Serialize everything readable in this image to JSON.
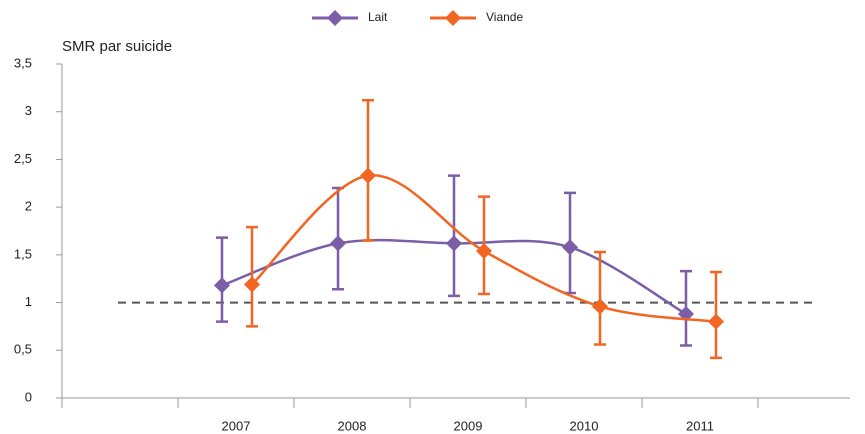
{
  "chart_data": {
    "type": "line",
    "y_label": "SMR par suicide",
    "categories": [
      "2007",
      "2008",
      "2009",
      "2010",
      "2011"
    ],
    "series": [
      {
        "name": "Lait",
        "color": "#7b5ea7",
        "values": [
          1.18,
          1.62,
          1.62,
          1.58,
          0.88
        ],
        "lower": [
          0.8,
          1.14,
          1.07,
          1.1,
          0.55
        ],
        "upper": [
          1.68,
          2.2,
          2.33,
          2.15,
          1.33
        ]
      },
      {
        "name": "Viande",
        "color": "#f26522",
        "values": [
          1.19,
          2.33,
          1.54,
          0.96,
          0.8
        ],
        "lower": [
          0.75,
          1.65,
          1.09,
          0.56,
          0.42
        ],
        "upper": [
          1.79,
          3.12,
          2.11,
          1.53,
          1.32
        ]
      }
    ],
    "reference_line": 1,
    "ylim": [
      0,
      3.5
    ],
    "yticks": [
      0,
      {
        "value": 0.5,
        "label": "0,5"
      },
      1,
      {
        "value": 1.5,
        "label": "1,5"
      },
      2,
      {
        "value": 2.5,
        "label": "2,5"
      },
      3,
      {
        "value": 3.5,
        "label": "3,5"
      }
    ],
    "legend": "top"
  }
}
